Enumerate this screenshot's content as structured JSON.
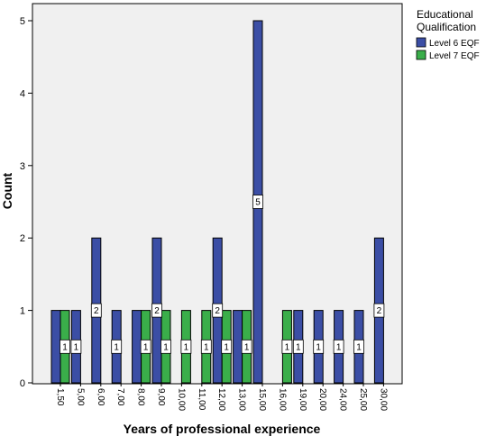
{
  "chart_data": {
    "type": "bar",
    "xlabel": "Years of professional experience",
    "ylabel": "Count",
    "ylim": [
      0,
      5
    ],
    "yticks": [
      "0",
      "1",
      "2",
      "3",
      "4",
      "5"
    ],
    "grid": false,
    "legend_placement": "top-right",
    "legend_title_lines": [
      "Educational",
      "Qualification"
    ],
    "categories": [
      "1,50",
      "5,00",
      "6,00",
      "7,00",
      "8,00",
      "9,00",
      "10,00",
      "11,00",
      "12,00",
      "13,00",
      "15,00",
      "16,00",
      "19,00",
      "20,00",
      "24,00",
      "25,00",
      "30,00"
    ],
    "series": [
      {
        "name": "Level 6 EQF",
        "color": "#3b4ea5",
        "values": [
          1,
          1,
          2,
          1,
          1,
          2,
          0,
          0,
          2,
          1,
          5,
          0,
          1,
          1,
          1,
          1,
          2
        ]
      },
      {
        "name": "Level 7 EQF",
        "color": "#3aae4a",
        "values": [
          1,
          0,
          0,
          0,
          1,
          1,
          1,
          1,
          1,
          1,
          0,
          1,
          0,
          0,
          0,
          0,
          0
        ]
      }
    ],
    "data_labels": [
      {
        "category": "1,50",
        "text": "1"
      },
      {
        "category": "5,00",
        "text": "1"
      },
      {
        "category": "6,00",
        "text": "2"
      },
      {
        "category": "7,00",
        "text": "1"
      },
      {
        "category": "8,00",
        "text": "1"
      },
      {
        "category": "9,00",
        "text": "2",
        "at_value": 2
      },
      {
        "category": "9,00",
        "text": "1"
      },
      {
        "category": "10,00",
        "text": "1"
      },
      {
        "category": "11,00",
        "text": "1"
      },
      {
        "category": "12,00",
        "text": "2",
        "at_value": 2
      },
      {
        "category": "12,00",
        "text": "1"
      },
      {
        "category": "13,00",
        "text": "1"
      },
      {
        "category": "15,00",
        "text": "5"
      },
      {
        "category": "16,00",
        "text": "1"
      },
      {
        "category": "19,00",
        "text": "1"
      },
      {
        "category": "20,00",
        "text": "1"
      },
      {
        "category": "24,00",
        "text": "1"
      },
      {
        "category": "25,00",
        "text": "1"
      },
      {
        "category": "30,00",
        "text": "2"
      }
    ],
    "colors": {
      "plot_background": "#f0f0f0",
      "label_box": "#ffffff"
    }
  }
}
